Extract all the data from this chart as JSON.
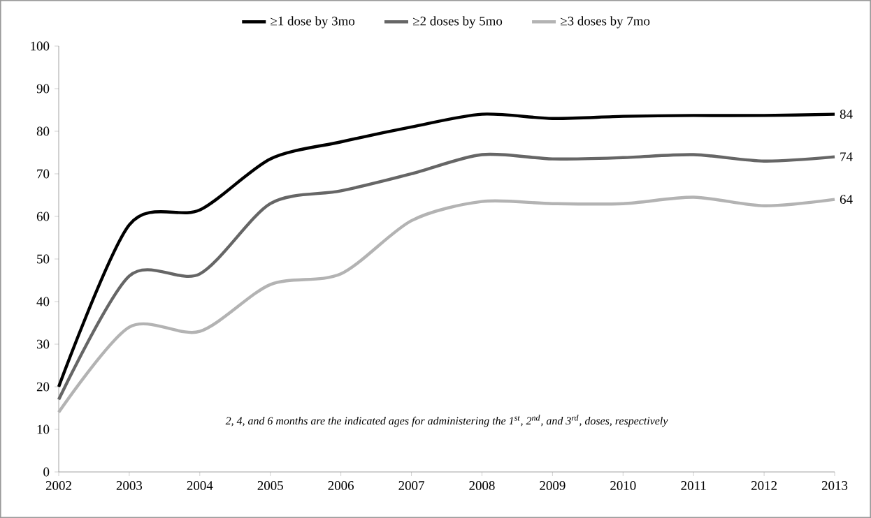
{
  "chart_data": {
    "type": "line",
    "x": [
      2002,
      2003,
      2004,
      2005,
      2006,
      2007,
      2008,
      2009,
      2010,
      2011,
      2012,
      2013
    ],
    "series": [
      {
        "name": "≥1 dose by 3mo",
        "color": "#000000",
        "values": [
          20,
          58,
          61.5,
          73.5,
          77.5,
          81,
          84,
          83,
          83.5,
          83.7,
          83.7,
          84
        ],
        "value_labels": [
          null,
          null,
          null,
          null,
          null,
          null,
          null,
          null,
          null,
          null,
          null,
          "84"
        ]
      },
      {
        "name": "≥2 doses by 5mo",
        "color": "#666666",
        "values": [
          17,
          46,
          46.5,
          63,
          66,
          70,
          74.5,
          73.5,
          73.8,
          74.5,
          73,
          74
        ],
        "value_labels": [
          null,
          null,
          null,
          null,
          null,
          null,
          null,
          null,
          null,
          null,
          null,
          "74"
        ]
      },
      {
        "name": "≥3 doses by 7mo",
        "color": "#b3b3b3",
        "values": [
          14,
          34,
          33,
          44,
          46.5,
          59,
          63.5,
          63,
          63,
          64.5,
          62.5,
          64
        ],
        "value_labels": [
          null,
          null,
          null,
          null,
          null,
          null,
          null,
          null,
          null,
          null,
          null,
          "64"
        ]
      }
    ],
    "annotations": [
      "2, 4, and 6 months are the indicated ages for administering the 1$^{st}$, 2$^{nd}$, and 3$^{rd}$, doses, respectively"
    ],
    "xlim": [
      2002,
      2013
    ],
    "xticks": [
      2002,
      2003,
      2004,
      2005,
      2006,
      2007,
      2008,
      2009,
      2010,
      2011,
      2012,
      2013
    ],
    "ylim": [
      0,
      100
    ],
    "yticks": [
      0,
      10,
      20,
      30,
      40,
      50,
      60,
      70,
      80,
      90,
      100
    ],
    "grid": false,
    "legend": "top",
    "marker": "none",
    "line_style": "solid"
  }
}
